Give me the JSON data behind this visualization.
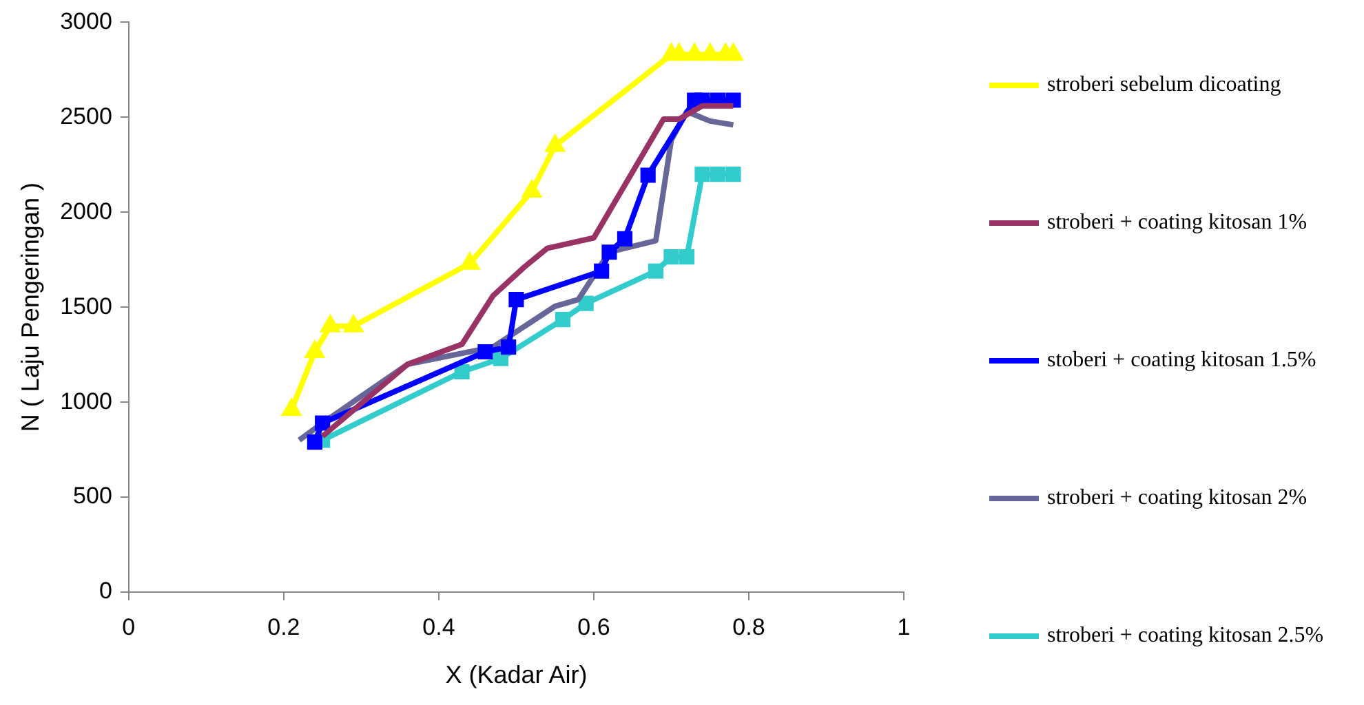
{
  "chart_data": {
    "type": "line",
    "xlabel": "X (Kadar Air)",
    "ylabel": "N ( Laju Pengeringan )",
    "xlim": [
      0,
      1
    ],
    "xticks": [
      0,
      0.2,
      0.4,
      0.6,
      0.8,
      1
    ],
    "ylim": [
      0,
      3000
    ],
    "yticks": [
      0,
      500,
      1000,
      1500,
      2000,
      2500,
      3000
    ],
    "grid": false,
    "legend": "right",
    "line_style": "solid",
    "series": [
      {
        "name": "stroberi sebelum dicoating",
        "color": "#ffff00",
        "marker": "triangle",
        "x": [
          0.21,
          0.24,
          0.26,
          0.29,
          0.44,
          0.52,
          0.55,
          0.7,
          0.71,
          0.73,
          0.75,
          0.77,
          0.78
        ],
        "values": [
          960,
          1265,
          1400,
          1400,
          1730,
          2110,
          2350,
          2830,
          2830,
          2830,
          2830,
          2830,
          2830
        ]
      },
      {
        "name": "stroberi + coating kitosan 1%",
        "color": "#993366",
        "marker": "none",
        "x": [
          0.25,
          0.36,
          0.43,
          0.47,
          0.51,
          0.54,
          0.6,
          0.69,
          0.71,
          0.74,
          0.76,
          0.78
        ],
        "values": [
          820,
          1200,
          1305,
          1560,
          1710,
          1810,
          1865,
          2490,
          2490,
          2560,
          2560,
          2560
        ]
      },
      {
        "name": "stoberi + coating kitosan 1.5%",
        "color": "#0000ff",
        "marker": "square",
        "x": [
          0.24,
          0.25,
          0.46,
          0.49,
          0.5,
          0.61,
          0.62,
          0.64,
          0.67,
          0.73,
          0.74,
          0.76,
          0.78
        ],
        "values": [
          790,
          890,
          1265,
          1290,
          1540,
          1690,
          1790,
          1860,
          2195,
          2590,
          2590,
          2590,
          2590
        ]
      },
      {
        "name": "stroberi + coating kitosan 2%",
        "color": "#666699",
        "marker": "none",
        "x": [
          0.22,
          0.25,
          0.36,
          0.47,
          0.55,
          0.58,
          0.62,
          0.68,
          0.7,
          0.72,
          0.75,
          0.78
        ],
        "values": [
          800,
          890,
          1200,
          1290,
          1505,
          1540,
          1790,
          1850,
          2380,
          2530,
          2480,
          2460
        ]
      },
      {
        "name": "stroberi + coating kitosan 2.5%",
        "color": "#33cccc",
        "marker": "square",
        "x": [
          0.25,
          0.43,
          0.48,
          0.56,
          0.59,
          0.68,
          0.7,
          0.72,
          0.74,
          0.76,
          0.78
        ],
        "values": [
          800,
          1160,
          1230,
          1435,
          1520,
          1690,
          1765,
          1765,
          2200,
          2200,
          2200
        ]
      }
    ]
  }
}
